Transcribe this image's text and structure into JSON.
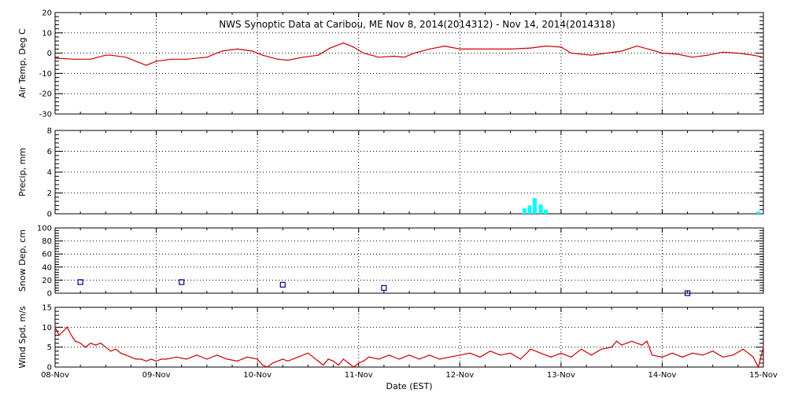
{
  "chart_data": [
    {
      "type": "line",
      "title": "NWS Synoptic Data at Caribou, ME   Nov  8, 2014(2014312) - Nov 14, 2014(2014318)",
      "ylabel": "Air Temp, Deg C",
      "ylim": [
        -30,
        20
      ],
      "yticks": [
        "20",
        "10",
        "0",
        "-10",
        "-20",
        "-30"
      ],
      "grid": true,
      "color": "#cc0000",
      "series": [
        {
          "x": [
            0.0,
            0.2,
            0.35,
            0.5,
            0.55,
            0.7,
            0.8,
            0.9,
            1.0,
            1.15,
            1.3,
            1.5,
            1.65,
            1.8,
            1.95,
            2.05,
            2.2,
            2.3,
            2.45,
            2.6,
            2.72,
            2.85,
            2.95,
            3.05,
            3.2,
            3.35,
            3.45,
            3.55,
            3.7,
            3.85,
            4.0,
            4.1,
            4.3,
            4.5,
            4.7,
            4.85,
            5.0,
            5.1,
            5.3,
            5.45,
            5.6,
            5.75,
            5.9,
            6.0,
            6.15,
            6.3,
            6.45,
            6.6,
            6.75,
            6.9,
            7.0
          ],
          "y": [
            -2.5,
            -3,
            -3,
            -1,
            -1,
            -2,
            -4,
            -6,
            -4,
            -3,
            -3,
            -2,
            1,
            2,
            1,
            -1,
            -3,
            -3.5,
            -2,
            -1,
            2.5,
            5,
            3,
            0,
            -2,
            -1.5,
            -2,
            0,
            2,
            3.5,
            2,
            2,
            2,
            2,
            2.5,
            3.5,
            3,
            0,
            -1,
            0,
            1,
            3.5,
            1.5,
            0,
            -0.5,
            -2,
            -1,
            0.5,
            0,
            -1,
            -2
          ]
        }
      ]
    },
    {
      "type": "bar",
      "ylabel": "Precip, mm",
      "ylim": [
        0,
        8
      ],
      "yticks": [
        "8",
        "6",
        "4",
        "2",
        "0"
      ],
      "grid": true,
      "color": "#00ffff",
      "series": [
        {
          "x": [
            4.64,
            4.69,
            4.74,
            4.8,
            4.85,
            6.95
          ],
          "values": [
            0.5,
            0.8,
            1.5,
            0.9,
            0.4,
            0.2
          ]
        }
      ]
    },
    {
      "type": "scatter",
      "ylabel": "Snow Dep, cm",
      "ylim": [
        0,
        100
      ],
      "yticks": [
        "100",
        "80",
        "60",
        "40",
        "20",
        "0"
      ],
      "grid": true,
      "color": "#000080",
      "series": [
        {
          "x": [
            0.25,
            1.25,
            2.25,
            3.25,
            6.25
          ],
          "y": [
            17,
            17,
            13,
            8,
            0
          ]
        }
      ]
    },
    {
      "type": "line",
      "ylabel": "Wind Spd, m/s",
      "ylim": [
        0,
        15
      ],
      "yticks": [
        "15",
        "10",
        "5",
        "0"
      ],
      "xlabel": "Date (EST)",
      "xlim": [
        "2014-11-08",
        "2014-11-15"
      ],
      "xticks": [
        "08-Nov",
        "09-Nov",
        "10-Nov",
        "11-Nov",
        "12-Nov",
        "13-Nov",
        "14-Nov",
        "15-Nov"
      ],
      "grid": true,
      "color": "#cc0000",
      "series": [
        {
          "x": [
            0.0,
            0.04,
            0.08,
            0.12,
            0.16,
            0.2,
            0.25,
            0.3,
            0.35,
            0.4,
            0.45,
            0.5,
            0.55,
            0.6,
            0.65,
            0.7,
            0.75,
            0.8,
            0.85,
            0.9,
            0.95,
            1.0,
            1.05,
            1.1,
            1.2,
            1.3,
            1.4,
            1.5,
            1.6,
            1.7,
            1.8,
            1.9,
            2.0,
            2.05,
            2.1,
            2.15,
            2.2,
            2.25,
            2.3,
            2.4,
            2.5,
            2.55,
            2.6,
            2.65,
            2.7,
            2.75,
            2.8,
            2.85,
            2.9,
            2.95,
            3.0,
            3.05,
            3.1,
            3.2,
            3.3,
            3.4,
            3.5,
            3.6,
            3.7,
            3.8,
            3.9,
            4.0,
            4.1,
            4.2,
            4.3,
            4.4,
            4.5,
            4.6,
            4.7,
            4.8,
            4.9,
            5.0,
            5.1,
            5.2,
            5.3,
            5.4,
            5.5,
            5.55,
            5.6,
            5.65,
            5.7,
            5.75,
            5.8,
            5.85,
            5.9,
            6.0,
            6.1,
            6.2,
            6.3,
            6.4,
            6.5,
            6.6,
            6.7,
            6.8,
            6.9,
            6.95,
            7.0
          ],
          "y": [
            10,
            8,
            9,
            10,
            8,
            6.5,
            6,
            5,
            6,
            5.5,
            6,
            5,
            4,
            4.5,
            3.5,
            3,
            2.5,
            2,
            2,
            1.5,
            2,
            1.5,
            2,
            2,
            2.5,
            2,
            3,
            2,
            3,
            2,
            1.5,
            2.5,
            2,
            0.5,
            0,
            1,
            1.5,
            2,
            1.5,
            2.5,
            3.5,
            2.5,
            1.5,
            0.5,
            2,
            1.5,
            0.5,
            2,
            1,
            0,
            1,
            1.5,
            2.5,
            2,
            3,
            2,
            3,
            2,
            3,
            2,
            2.5,
            3,
            3.5,
            2.5,
            4,
            3,
            3.5,
            2,
            4.5,
            3.5,
            2.5,
            3.5,
            2.5,
            4.5,
            3,
            4.5,
            5,
            6.5,
            5.5,
            6,
            6.5,
            6,
            5.5,
            6.5,
            3,
            2.5,
            3.5,
            2.5,
            3.5,
            3,
            4,
            2.5,
            3,
            4.5,
            2.5,
            0,
            5
          ]
        }
      ]
    }
  ]
}
